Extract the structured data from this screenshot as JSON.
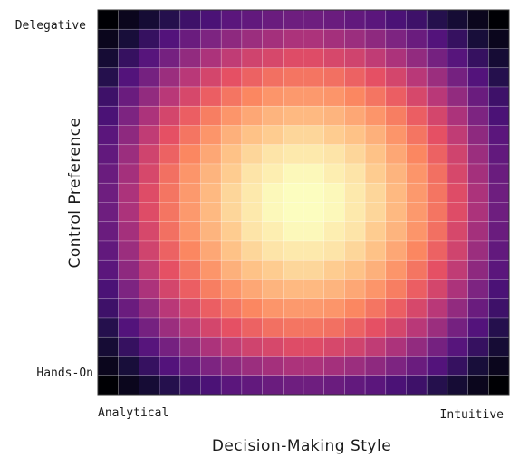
{
  "chart_data": {
    "type": "heatmap",
    "title": "",
    "xlabel": "Decision-Making Style",
    "ylabel": "Control Preference",
    "x_tick_labels": [
      "Analytical",
      "Intuitive"
    ],
    "y_tick_labels": [
      "Delegative",
      "Hands-On"
    ],
    "rows": 20,
    "cols": 20,
    "colormap": "magma",
    "value_range": [
      0,
      1
    ],
    "grid": true,
    "legend": "none",
    "values": [
      [
        0.0,
        0.05,
        0.1,
        0.15,
        0.21,
        0.24,
        0.28,
        0.3,
        0.32,
        0.33,
        0.33,
        0.32,
        0.3,
        0.28,
        0.24,
        0.21,
        0.15,
        0.1,
        0.05,
        0.0
      ],
      [
        0.05,
        0.11,
        0.19,
        0.26,
        0.32,
        0.37,
        0.41,
        0.44,
        0.46,
        0.48,
        0.48,
        0.46,
        0.44,
        0.41,
        0.37,
        0.32,
        0.26,
        0.19,
        0.11,
        0.05
      ],
      [
        0.1,
        0.19,
        0.27,
        0.35,
        0.42,
        0.48,
        0.53,
        0.57,
        0.59,
        0.61,
        0.61,
        0.59,
        0.57,
        0.53,
        0.48,
        0.42,
        0.35,
        0.27,
        0.19,
        0.1
      ],
      [
        0.15,
        0.26,
        0.35,
        0.44,
        0.51,
        0.58,
        0.63,
        0.67,
        0.7,
        0.71,
        0.71,
        0.7,
        0.67,
        0.63,
        0.58,
        0.51,
        0.44,
        0.35,
        0.26,
        0.15
      ],
      [
        0.21,
        0.32,
        0.42,
        0.51,
        0.59,
        0.66,
        0.71,
        0.75,
        0.78,
        0.79,
        0.79,
        0.78,
        0.75,
        0.71,
        0.66,
        0.59,
        0.51,
        0.42,
        0.32,
        0.21
      ],
      [
        0.24,
        0.37,
        0.48,
        0.58,
        0.66,
        0.73,
        0.78,
        0.82,
        0.85,
        0.86,
        0.86,
        0.85,
        0.82,
        0.78,
        0.73,
        0.66,
        0.58,
        0.48,
        0.37,
        0.24
      ],
      [
        0.28,
        0.41,
        0.53,
        0.63,
        0.71,
        0.78,
        0.84,
        0.88,
        0.9,
        0.92,
        0.92,
        0.9,
        0.88,
        0.84,
        0.78,
        0.71,
        0.63,
        0.53,
        0.41,
        0.28
      ],
      [
        0.3,
        0.44,
        0.57,
        0.67,
        0.75,
        0.82,
        0.88,
        0.92,
        0.95,
        0.96,
        0.96,
        0.95,
        0.92,
        0.88,
        0.82,
        0.75,
        0.67,
        0.57,
        0.44,
        0.3
      ],
      [
        0.32,
        0.46,
        0.59,
        0.7,
        0.78,
        0.85,
        0.9,
        0.95,
        0.97,
        0.99,
        0.99,
        0.97,
        0.95,
        0.9,
        0.85,
        0.78,
        0.7,
        0.59,
        0.46,
        0.32
      ],
      [
        0.33,
        0.48,
        0.61,
        0.71,
        0.79,
        0.86,
        0.92,
        0.96,
        0.99,
        1.0,
        1.0,
        0.99,
        0.96,
        0.92,
        0.86,
        0.79,
        0.71,
        0.61,
        0.48,
        0.33
      ],
      [
        0.33,
        0.48,
        0.61,
        0.71,
        0.79,
        0.86,
        0.92,
        0.96,
        0.99,
        1.0,
        1.0,
        0.99,
        0.96,
        0.92,
        0.86,
        0.79,
        0.71,
        0.61,
        0.48,
        0.33
      ],
      [
        0.32,
        0.46,
        0.59,
        0.7,
        0.78,
        0.85,
        0.9,
        0.95,
        0.97,
        0.99,
        0.99,
        0.97,
        0.95,
        0.9,
        0.85,
        0.78,
        0.7,
        0.59,
        0.46,
        0.32
      ],
      [
        0.3,
        0.44,
        0.57,
        0.67,
        0.75,
        0.82,
        0.88,
        0.92,
        0.95,
        0.96,
        0.96,
        0.95,
        0.92,
        0.88,
        0.82,
        0.75,
        0.67,
        0.57,
        0.44,
        0.3
      ],
      [
        0.28,
        0.41,
        0.53,
        0.63,
        0.71,
        0.78,
        0.84,
        0.88,
        0.9,
        0.92,
        0.92,
        0.9,
        0.88,
        0.84,
        0.78,
        0.71,
        0.63,
        0.53,
        0.41,
        0.28
      ],
      [
        0.24,
        0.37,
        0.48,
        0.58,
        0.66,
        0.73,
        0.78,
        0.82,
        0.85,
        0.86,
        0.86,
        0.85,
        0.82,
        0.78,
        0.73,
        0.66,
        0.58,
        0.48,
        0.37,
        0.24
      ],
      [
        0.21,
        0.32,
        0.42,
        0.51,
        0.59,
        0.66,
        0.71,
        0.75,
        0.78,
        0.79,
        0.79,
        0.78,
        0.75,
        0.71,
        0.66,
        0.59,
        0.51,
        0.42,
        0.32,
        0.21
      ],
      [
        0.15,
        0.26,
        0.35,
        0.44,
        0.51,
        0.58,
        0.63,
        0.67,
        0.7,
        0.71,
        0.71,
        0.7,
        0.67,
        0.63,
        0.58,
        0.51,
        0.44,
        0.35,
        0.26,
        0.15
      ],
      [
        0.1,
        0.19,
        0.27,
        0.35,
        0.42,
        0.48,
        0.53,
        0.57,
        0.59,
        0.61,
        0.61,
        0.59,
        0.57,
        0.53,
        0.48,
        0.42,
        0.35,
        0.27,
        0.19,
        0.1
      ],
      [
        0.05,
        0.11,
        0.19,
        0.26,
        0.32,
        0.37,
        0.41,
        0.44,
        0.46,
        0.48,
        0.48,
        0.46,
        0.44,
        0.41,
        0.37,
        0.32,
        0.26,
        0.19,
        0.11,
        0.05
      ],
      [
        0.0,
        0.05,
        0.1,
        0.15,
        0.21,
        0.24,
        0.28,
        0.3,
        0.32,
        0.33,
        0.33,
        0.32,
        0.3,
        0.28,
        0.24,
        0.21,
        0.15,
        0.1,
        0.05,
        0.0
      ]
    ]
  }
}
